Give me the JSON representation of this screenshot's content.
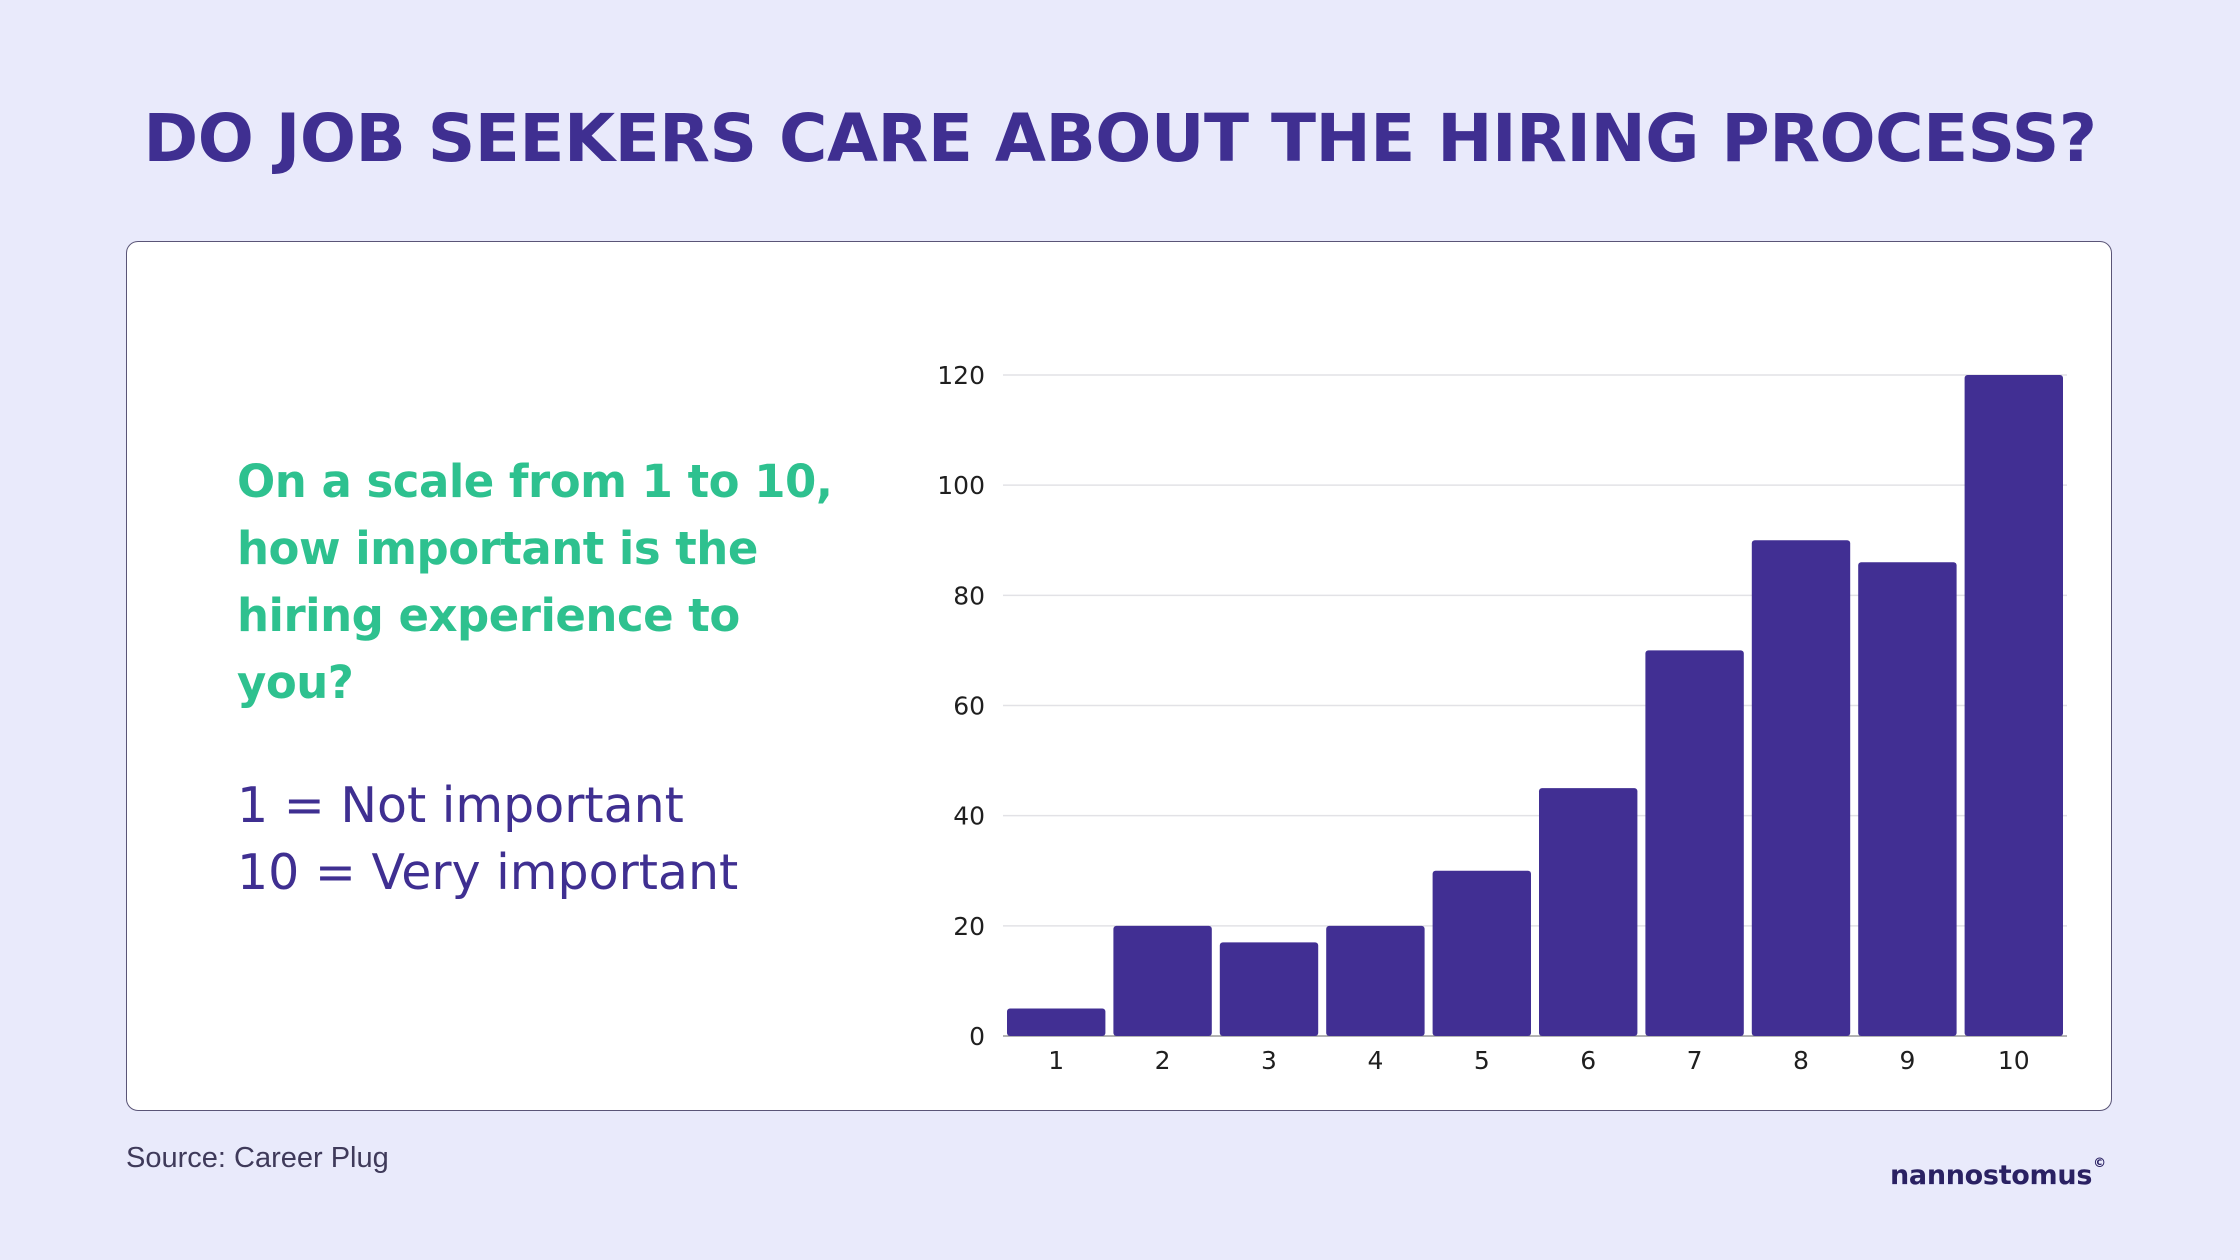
{
  "title": "DO JOB SEEKERS CARE ABOUT THE HIRING PROCESS?",
  "question_lines": [
    "On a scale from 1 to 10,",
    "how important is the",
    "hiring experience to",
    "you?"
  ],
  "scale_legend": {
    "line1": "1 = Not important",
    "line2": "10 = Very important"
  },
  "source": "Source: Career Plug",
  "logo": {
    "text": "nannostomus",
    "mark": "©"
  },
  "colors": {
    "bar": "#412f93",
    "question": "#2ec18f",
    "title": "#3f2f91",
    "background": "#e9eafb"
  },
  "chart_data": {
    "type": "bar",
    "categories": [
      "1",
      "2",
      "3",
      "4",
      "5",
      "6",
      "7",
      "8",
      "9",
      "10"
    ],
    "values": [
      5,
      20,
      17,
      20,
      30,
      45,
      70,
      90,
      86,
      120
    ],
    "ylim": [
      0,
      120
    ],
    "yticks": [
      0,
      20,
      40,
      60,
      80,
      100,
      120
    ],
    "grid": true,
    "xlabel": "",
    "ylabel": ""
  }
}
